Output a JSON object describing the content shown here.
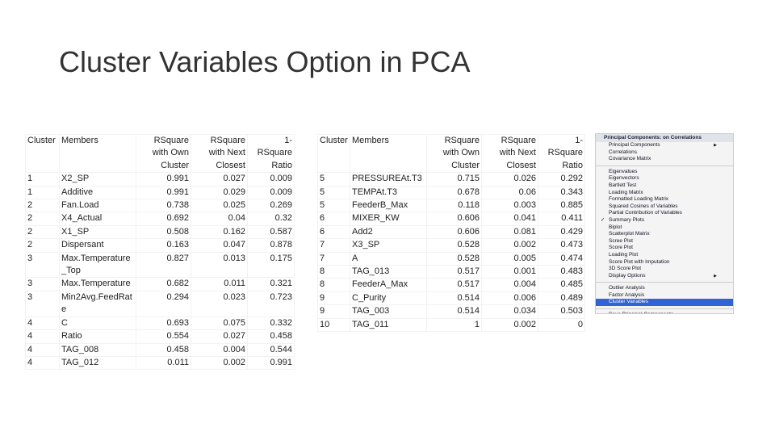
{
  "title": "Cluster Variables Option in PCA",
  "left_table": {
    "header": [
      "Cluster",
      "Members",
      "RSquare with Own Cluster",
      "RSquare with Next Closest",
      "1-RSquare Ratio"
    ],
    "rows": [
      [
        "1",
        "X2_SP",
        "0.991",
        "0.027",
        "0.009"
      ],
      [
        "1",
        "Additive",
        "0.991",
        "0.029",
        "0.009"
      ],
      [
        "2",
        "Fan.Load",
        "0.738",
        "0.025",
        "0.269"
      ],
      [
        "2",
        "X4_Actual",
        "0.692",
        "0.04",
        "0.32"
      ],
      [
        "2",
        "X1_SP",
        "0.508",
        "0.162",
        "0.587"
      ],
      [
        "2",
        "Dispersant",
        "0.163",
        "0.047",
        "0.878"
      ],
      [
        "3",
        "Max.Temperature_Top",
        "0.827",
        "0.013",
        "0.175"
      ],
      [
        "3",
        "Max.Temperature",
        "0.682",
        "0.011",
        "0.321"
      ],
      [
        "3",
        "Min2Avg.FeedRate",
        "0.294",
        "0.023",
        "0.723"
      ],
      [
        "4",
        "C",
        "0.693",
        "0.075",
        "0.332"
      ],
      [
        "4",
        "Ratio",
        "0.554",
        "0.027",
        "0.458"
      ],
      [
        "4",
        "TAG_008",
        "0.458",
        "0.004",
        "0.544"
      ],
      [
        "4",
        "TAG_012",
        "0.011",
        "0.002",
        "0.991"
      ]
    ]
  },
  "right_table": {
    "header": [
      "Cluster",
      "Members",
      "RSquare with Own Cluster",
      "RSquare with Next Closest",
      "1-RSquare Ratio"
    ],
    "rows": [
      [
        "5",
        "PRESSUREAt.T3",
        "0.715",
        "0.026",
        "0.292"
      ],
      [
        "5",
        "TEMPAt.T3",
        "0.678",
        "0.06",
        "0.343"
      ],
      [
        "5",
        "FeederB_Max",
        "0.118",
        "0.003",
        "0.885"
      ],
      [
        "6",
        "MIXER_KW",
        "0.606",
        "0.041",
        "0.411"
      ],
      [
        "6",
        "Add2",
        "0.606",
        "0.081",
        "0.429"
      ],
      [
        "7",
        "X3_SP",
        "0.528",
        "0.002",
        "0.473"
      ],
      [
        "7",
        "A",
        "0.528",
        "0.005",
        "0.474"
      ],
      [
        "8",
        "TAG_013",
        "0.517",
        "0.001",
        "0.483"
      ],
      [
        "8",
        "FeederA_Max",
        "0.517",
        "0.004",
        "0.485"
      ],
      [
        "9",
        "C_Purity",
        "0.514",
        "0.006",
        "0.489"
      ],
      [
        "9",
        "TAG_003",
        "0.514",
        "0.034",
        "0.503"
      ],
      [
        "10",
        "TAG_011",
        "1",
        "0.002",
        "0"
      ]
    ]
  },
  "menu": {
    "header": "Principal Components: on Correlations",
    "groups": [
      [
        {
          "label": "Principal Components",
          "submenu": true
        },
        {
          "label": "Correlations"
        },
        {
          "label": "Covariance Matrix"
        }
      ],
      [
        {
          "label": "Eigenvalues"
        },
        {
          "label": "Eigenvectors"
        },
        {
          "label": "Bartlett Test"
        },
        {
          "label": "Loading Matrix"
        },
        {
          "label": "Formatted Loading Matrix"
        },
        {
          "label": "Squared Cosines of Variables"
        },
        {
          "label": "Partial Contribution of Variables"
        },
        {
          "label": "Summary Plots",
          "checked": true
        },
        {
          "label": "Biplot"
        },
        {
          "label": "Scatterplot Matrix"
        },
        {
          "label": "Scree Plot"
        },
        {
          "label": "Score Plot"
        },
        {
          "label": "Loading Plot"
        },
        {
          "label": "Score Plot with Imputation"
        },
        {
          "label": "3D Score Plot"
        },
        {
          "label": "Display Options",
          "submenu": true
        }
      ],
      [
        {
          "label": "Outlier Analysis"
        },
        {
          "label": "Factor Analysis"
        },
        {
          "label": "Cluster Variables",
          "highlighted": true
        }
      ],
      [
        {
          "label": "Save Principal Components"
        }
      ]
    ]
  }
}
